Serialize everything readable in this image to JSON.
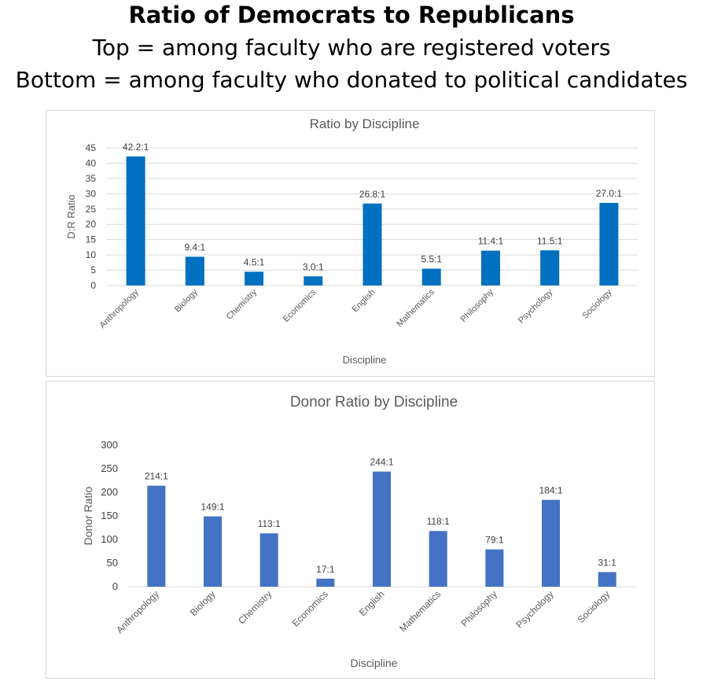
{
  "header": {
    "title": "Ratio of Democrats to Republicans",
    "line1": "Top =  among faculty who are registered voters",
    "line2": "Bottom = among faculty who donated to political candidates"
  },
  "chart_data": [
    {
      "type": "bar",
      "title": "Ratio by Discipline",
      "xlabel": "Discipline",
      "ylabel": "D:R Ratio",
      "ylim": [
        0,
        45
      ],
      "yticks": [
        0,
        5,
        10,
        15,
        20,
        25,
        30,
        35,
        40,
        45
      ],
      "grid": true,
      "color": "#0070C0",
      "categories": [
        "Anthropology",
        "Biology",
        "Chemistry",
        "Economics",
        "English",
        "Mathematics",
        "Philosophy",
        "Psychology",
        "Sociology"
      ],
      "values": [
        42.2,
        9.4,
        4.5,
        3.0,
        26.8,
        5.5,
        11.4,
        11.5,
        27.0
      ],
      "labels": [
        "42.2:1",
        "9.4:1",
        "4.5:1",
        "3.0:1",
        "26.8:1",
        "5.5:1",
        "11.4:1",
        "11.5:1",
        "27.0:1"
      ]
    },
    {
      "type": "bar",
      "title": "Donor Ratio by Discipline",
      "xlabel": "Discipline",
      "ylabel": "Donor Ratio",
      "ylim": [
        0,
        300
      ],
      "yticks": [
        0,
        50,
        100,
        150,
        200,
        250,
        300
      ],
      "grid": false,
      "color": "#4472C4",
      "categories": [
        "Anthropology",
        "Biology",
        "Chemistry",
        "Economics",
        "English",
        "Mathematics",
        "Philosophy",
        "Psychology",
        "Sociology"
      ],
      "values": [
        214,
        149,
        113,
        17,
        244,
        118,
        79,
        184,
        31
      ],
      "labels": [
        "214:1",
        "149:1",
        "113:1",
        "17:1",
        "244:1",
        "118:1",
        "79:1",
        "184:1",
        "31:1"
      ]
    }
  ]
}
